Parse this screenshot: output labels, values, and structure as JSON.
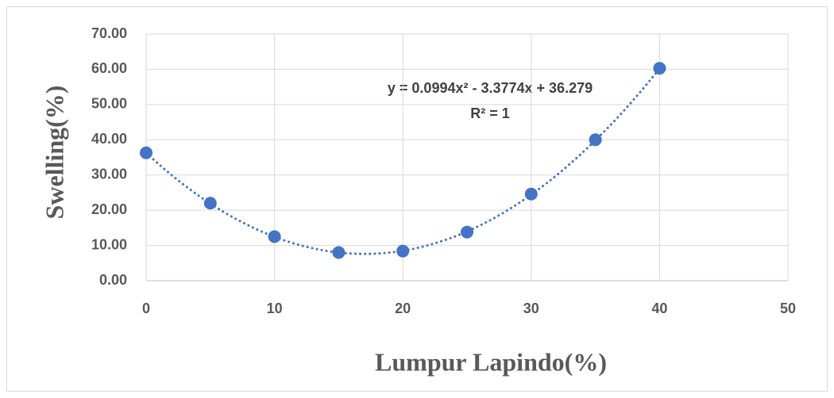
{
  "chart_data": {
    "type": "scatter",
    "x_label": "Lumpur Lapindo(%)",
    "y_label": "Swelling(%)",
    "x": [
      0,
      5,
      10,
      15,
      20,
      25,
      30,
      35,
      40
    ],
    "values": [
      36.3,
      22.0,
      12.5,
      8.0,
      8.4,
      13.8,
      24.6,
      40.0,
      60.3
    ],
    "color": "#4472c4",
    "xlim": [
      0,
      50
    ],
    "xticks": [
      0,
      10,
      20,
      30,
      40,
      50
    ],
    "ylim": [
      0,
      70
    ],
    "yticks": [
      {
        "value": 0,
        "label": "0.00"
      },
      {
        "value": 10,
        "label": "10.00"
      },
      {
        "value": 20,
        "label": "20.00"
      },
      {
        "value": 30,
        "label": "30.00"
      },
      {
        "value": 40,
        "label": "40.00"
      },
      {
        "value": 50,
        "label": "50.00"
      },
      {
        "value": 60,
        "label": "60.00"
      },
      {
        "value": 70,
        "label": "70.00"
      }
    ],
    "grid": true,
    "trendline": {
      "equation": "y = 0.0994x² - 3.3774x + 36.279",
      "r_squared": "R² = 1",
      "coefficients": [
        0.0994,
        -3.3774,
        36.279
      ]
    }
  }
}
